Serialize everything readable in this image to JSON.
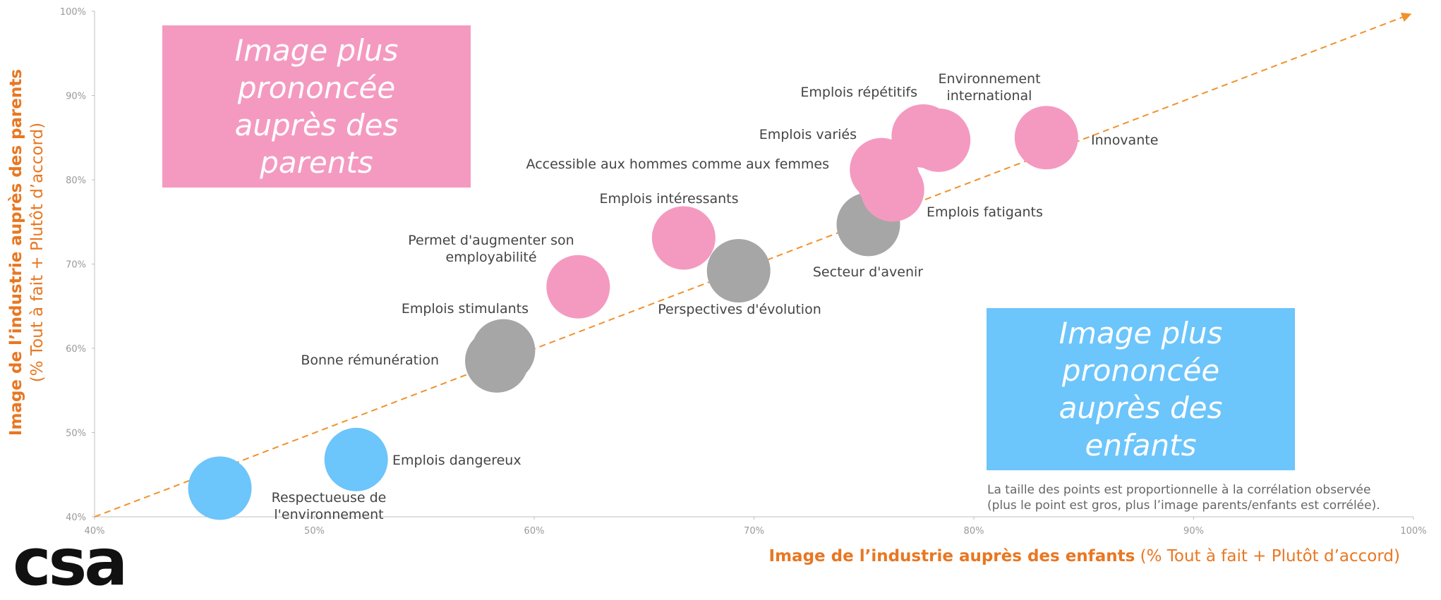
{
  "chart_data": {
    "type": "bubble",
    "ylabel_main": "Image de l’industrie auprès des parents",
    "ylabel_detail": "(% Tout à fait + Plutôt d’accord)",
    "xlabel_main": "Image de l’industrie auprès des enfants",
    "xlabel_detail": "(% Tout à fait + Plutôt d’accord)",
    "xlim": [
      40,
      100
    ],
    "ylim": [
      40,
      100
    ],
    "xticks": [
      {
        "value": 40,
        "label": "40%"
      },
      {
        "value": 50,
        "label": "50%"
      },
      {
        "value": 60,
        "label": "60%"
      },
      {
        "value": 70,
        "label": "70%"
      },
      {
        "value": 80,
        "label": "80%"
      },
      {
        "value": 90,
        "label": "90%"
      },
      {
        "value": 100,
        "label": "100%"
      }
    ],
    "yticks": [
      {
        "value": 40,
        "label": "40%"
      },
      {
        "value": 50,
        "label": "50%"
      },
      {
        "value": 60,
        "label": "60%"
      },
      {
        "value": 70,
        "label": "70%"
      },
      {
        "value": 80,
        "label": "80%"
      },
      {
        "value": 90,
        "label": "90%"
      },
      {
        "value": 100,
        "label": "100%"
      }
    ],
    "diagonal": true,
    "diagonal_color": "#f0922b",
    "points": [
      {
        "label": [
          "Respectueuse de",
          "l'environnement"
        ],
        "x": 45.7,
        "y": 43.4,
        "color": "#6cc5fb"
      },
      {
        "label": [
          "Emplois dangereux"
        ],
        "x": 51.9,
        "y": 46.8,
        "color": "#6cc5fb"
      },
      {
        "label": [
          "Bonne rémunération"
        ],
        "x": 58.3,
        "y": 58.5,
        "color": "#a6a6a6"
      },
      {
        "label": [
          "Emplois stimulants"
        ],
        "x": 58.6,
        "y": 59.7,
        "color": "#a6a6a6"
      },
      {
        "label": [
          "Permet d'augmenter son",
          "employabilité"
        ],
        "x": 62.0,
        "y": 67.3,
        "color": "#f49ac1"
      },
      {
        "label": [
          "Emplois intéressants"
        ],
        "x": 66.8,
        "y": 73.1,
        "color": "#f49ac1"
      },
      {
        "label": [
          "Perspectives d'évolution"
        ],
        "x": 69.3,
        "y": 69.2,
        "color": "#a6a6a6"
      },
      {
        "label": [
          "Secteur d'avenir"
        ],
        "x": 75.2,
        "y": 74.7,
        "color": "#a6a6a6"
      },
      {
        "label": [
          "Emplois fatigants"
        ],
        "x": 76.3,
        "y": 78.8,
        "color": "#f49ac1"
      },
      {
        "label": [
          "Accessible aux hommes comme aux femmes"
        ],
        "x": 76.1,
        "y": 80.0,
        "color": "#f49ac1"
      },
      {
        "label": [
          "Emplois variés"
        ],
        "x": 75.8,
        "y": 81.2,
        "color": "#f49ac1"
      },
      {
        "label": [
          "Emplois répétitifs"
        ],
        "x": 77.7,
        "y": 85.2,
        "color": "#f49ac1"
      },
      {
        "label": [
          "Environnement",
          "international"
        ],
        "x": 78.4,
        "y": 84.7,
        "color": "#f49ac1"
      },
      {
        "label": [
          "Innovante"
        ],
        "x": 83.3,
        "y": 85.0,
        "color": "#f49ac1"
      }
    ],
    "annotations": [
      {
        "text": "Image plus prononcée auprès des parents",
        "color": "#f49ac1"
      },
      {
        "text": "Image plus prononcée auprès des enfants",
        "color": "#6cc5fb"
      }
    ],
    "note": [
      "La taille des points est proportionnelle à la corrélation observée",
      "(plus le point est gros, plus l’image parents/enfants est corrélée)."
    ]
  },
  "logo": "csa"
}
